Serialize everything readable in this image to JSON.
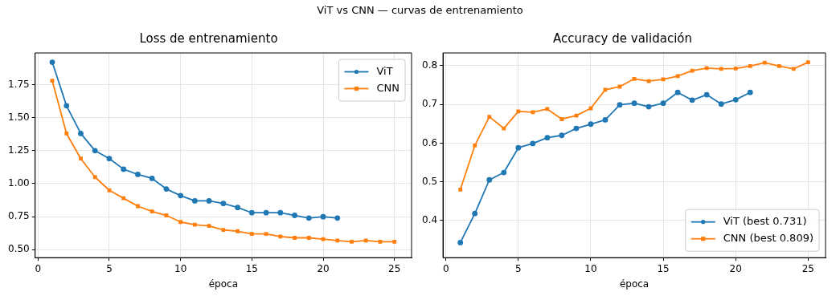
{
  "chart_data": [
    {
      "type": "line",
      "title": "Loss de entrenamiento",
      "xlabel": "época",
      "x": [
        1,
        2,
        3,
        4,
        5,
        6,
        7,
        8,
        9,
        10,
        11,
        12,
        13,
        14,
        15,
        16,
        17,
        18,
        19,
        20,
        21,
        22,
        23,
        24,
        25
      ],
      "xlim": [
        -0.2,
        26.2
      ],
      "xticks": [
        0,
        5,
        10,
        15,
        20,
        25
      ],
      "ylim": [
        0.44,
        1.99
      ],
      "yticks": [
        {
          "value": 0.5,
          "label": "0.50"
        },
        {
          "value": 0.75,
          "label": "0.75"
        },
        {
          "value": 1.0,
          "label": "1.00"
        },
        {
          "value": 1.25,
          "label": "1.25"
        },
        {
          "value": 1.5,
          "label": "1.50"
        },
        {
          "value": 1.75,
          "label": "1.75"
        }
      ],
      "grid": true,
      "legend": "top right",
      "annotations": [
        "ViT vs CNN — curvas de entrenamiento"
      ],
      "series": [
        {
          "name": "ViT",
          "color": "#1f77b4",
          "marker": "circle",
          "x": [
            1,
            2,
            3,
            4,
            5,
            6,
            7,
            8,
            9,
            10,
            11,
            12,
            13,
            14,
            15,
            16,
            17,
            18,
            19,
            20,
            21
          ],
          "values": [
            1.92,
            1.59,
            1.38,
            1.25,
            1.19,
            1.11,
            1.07,
            1.04,
            0.96,
            0.91,
            0.87,
            0.87,
            0.85,
            0.82,
            0.78,
            0.78,
            0.78,
            0.76,
            0.74,
            0.75,
            0.74
          ]
        },
        {
          "name": "CNN",
          "color": "#ff7f0e",
          "marker": "square",
          "values": [
            1.78,
            1.38,
            1.19,
            1.05,
            0.95,
            0.89,
            0.83,
            0.79,
            0.76,
            0.71,
            0.69,
            0.68,
            0.65,
            0.64,
            0.62,
            0.62,
            0.6,
            0.59,
            0.59,
            0.58,
            0.57,
            0.56,
            0.57,
            0.56,
            0.56
          ]
        }
      ]
    },
    {
      "type": "line",
      "title": "Accuracy de validación",
      "xlabel": "época",
      "x": [
        1,
        2,
        3,
        4,
        5,
        6,
        7,
        8,
        9,
        10,
        11,
        12,
        13,
        14,
        15,
        16,
        17,
        18,
        19,
        20,
        21,
        22,
        23,
        24,
        25
      ],
      "xlim": [
        -0.2,
        26.2
      ],
      "xticks": [
        0,
        5,
        10,
        15,
        20,
        25
      ],
      "ylim": [
        0.304,
        0.833
      ],
      "yticks": [
        0.4,
        0.5,
        0.6,
        0.7,
        0.8
      ],
      "grid": true,
      "legend": "bottom right",
      "series": [
        {
          "name": "ViT (best 0.731)",
          "color": "#1f77b4",
          "marker": "circle",
          "x": [
            1,
            2,
            3,
            4,
            5,
            6,
            7,
            8,
            9,
            10,
            11,
            12,
            13,
            14,
            15,
            16,
            17,
            18,
            19,
            20,
            21
          ],
          "values": [
            0.343,
            0.418,
            0.505,
            0.524,
            0.588,
            0.599,
            0.614,
            0.62,
            0.638,
            0.649,
            0.66,
            0.699,
            0.703,
            0.694,
            0.703,
            0.731,
            0.711,
            0.725,
            0.701,
            0.712,
            0.731
          ]
        },
        {
          "name": "CNN (best 0.809)",
          "color": "#ff7f0e",
          "marker": "square",
          "values": [
            0.48,
            0.594,
            0.668,
            0.638,
            0.682,
            0.68,
            0.688,
            0.662,
            0.671,
            0.69,
            0.738,
            0.746,
            0.766,
            0.76,
            0.765,
            0.773,
            0.787,
            0.794,
            0.792,
            0.793,
            0.799,
            0.808,
            0.799,
            0.792,
            0.809
          ]
        }
      ]
    }
  ]
}
